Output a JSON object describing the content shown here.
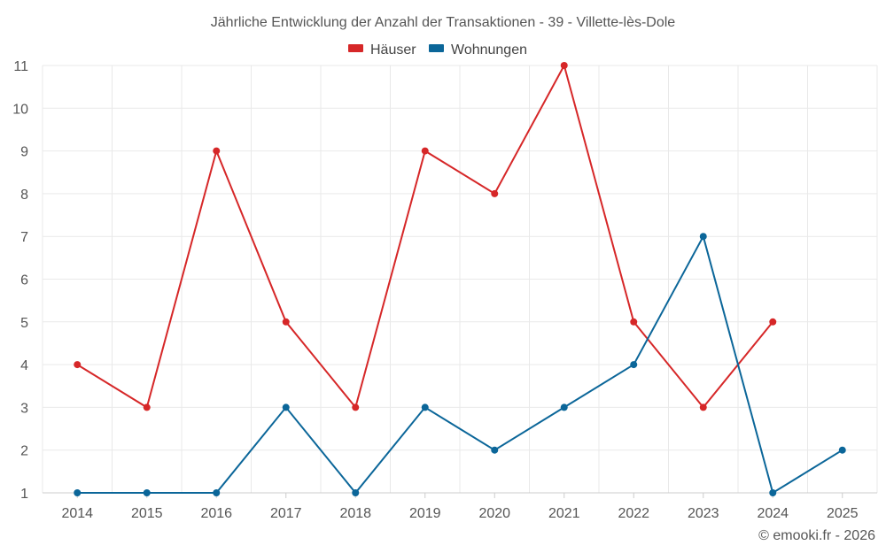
{
  "chart_data": {
    "type": "line",
    "title": "Jährliche Entwicklung der Anzahl der Transaktionen - 39 - Villette-lès-Dole",
    "xlabel": "",
    "ylabel": "",
    "categories": [
      "2014",
      "2015",
      "2016",
      "2017",
      "2018",
      "2019",
      "2020",
      "2021",
      "2022",
      "2023",
      "2024",
      "2025"
    ],
    "ylim": [
      1,
      11
    ],
    "yticks": [
      1,
      2,
      3,
      4,
      5,
      6,
      7,
      8,
      9,
      10,
      11
    ],
    "grid": true,
    "legend_position": "top-center",
    "series": [
      {
        "name": "Häuser",
        "color": "#d62728",
        "values": [
          4,
          3,
          9,
          5,
          3,
          9,
          8,
          11,
          5,
          3,
          5,
          null
        ]
      },
      {
        "name": "Wohnungen",
        "color": "#0b6699",
        "values": [
          1,
          1,
          1,
          3,
          1,
          3,
          2,
          3,
          4,
          7,
          1,
          2
        ]
      }
    ]
  },
  "credit": "© emooki.fr - 2026"
}
